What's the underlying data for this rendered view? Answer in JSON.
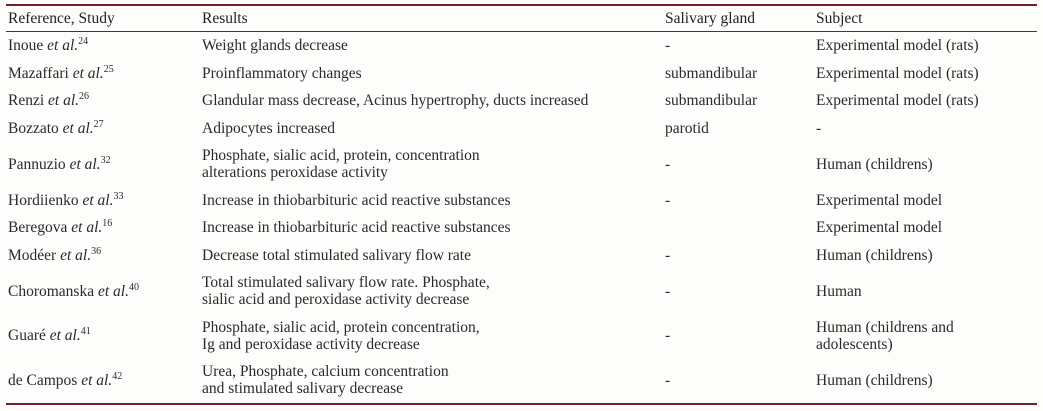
{
  "colors": {
    "rule": "#732028",
    "text": "#2a2a2a",
    "background": "#fdfdfb"
  },
  "table": {
    "headers": [
      "Reference, Study",
      "Results",
      "Salivary gland",
      "Subject"
    ],
    "et_al_label": "et al.",
    "rows": [
      {
        "ref_name": "Inoue",
        "ref_num": "24",
        "results": [
          "Weight glands decrease"
        ],
        "salivary_gland": "-",
        "subject": [
          "Experimental model (rats)"
        ]
      },
      {
        "ref_name": "Mazaffari",
        "ref_num": "25",
        "results": [
          "Proinflammatory changes"
        ],
        "salivary_gland": "submandibular",
        "subject": [
          "Experimental model (rats)"
        ]
      },
      {
        "ref_name": "Renzi",
        "ref_num": "26",
        "results": [
          "Glandular mass decrease, Acinus hypertrophy, ducts increased"
        ],
        "salivary_gland": "submandibular",
        "subject": [
          "Experimental model (rats)"
        ]
      },
      {
        "ref_name": "Bozzato",
        "ref_num": "27",
        "results": [
          "Adipocytes increased"
        ],
        "salivary_gland": "parotid",
        "subject": [
          "-"
        ]
      },
      {
        "ref_name": "Pannuzio",
        "ref_num": "32",
        "results": [
          "Phosphate, sialic acid, protein, concentration",
          "alterations peroxidase activity"
        ],
        "salivary_gland": "-",
        "subject": [
          "Human (childrens)"
        ]
      },
      {
        "ref_name": "Hordiienko",
        "ref_num": "33",
        "results": [
          "Increase in thiobarbituric acid reactive substances"
        ],
        "salivary_gland": "-",
        "subject": [
          "Experimental model"
        ]
      },
      {
        "ref_name": "Beregova",
        "ref_num": "16",
        "results": [
          "Increase in thiobarbituric acid reactive substances"
        ],
        "salivary_gland": "",
        "subject": [
          "Experimental model"
        ]
      },
      {
        "ref_name": "Modéer",
        "ref_num": "36",
        "results": [
          "Decrease total stimulated salivary flow rate"
        ],
        "salivary_gland": "-",
        "subject": [
          "Human (childrens)"
        ]
      },
      {
        "ref_name": "Choromanska",
        "ref_num": "40",
        "results": [
          "Total stimulated salivary flow rate. Phosphate,",
          "sialic acid and peroxidase activity decrease"
        ],
        "salivary_gland": "-",
        "subject": [
          "Human"
        ]
      },
      {
        "ref_name": "Guaré",
        "ref_num": "41",
        "results": [
          "Phosphate, sialic acid, protein concentration,",
          "Ig and peroxidase activity decrease"
        ],
        "salivary_gland": "-",
        "subject": [
          "Human (childrens and",
          "adolescents)"
        ]
      },
      {
        "ref_name": "de Campos",
        "ref_num": "42",
        "results": [
          "Urea, Phosphate, calcium concentration",
          "and stimulated salivary decrease"
        ],
        "salivary_gland": "-",
        "subject": [
          "Human (childrens)"
        ]
      }
    ]
  }
}
